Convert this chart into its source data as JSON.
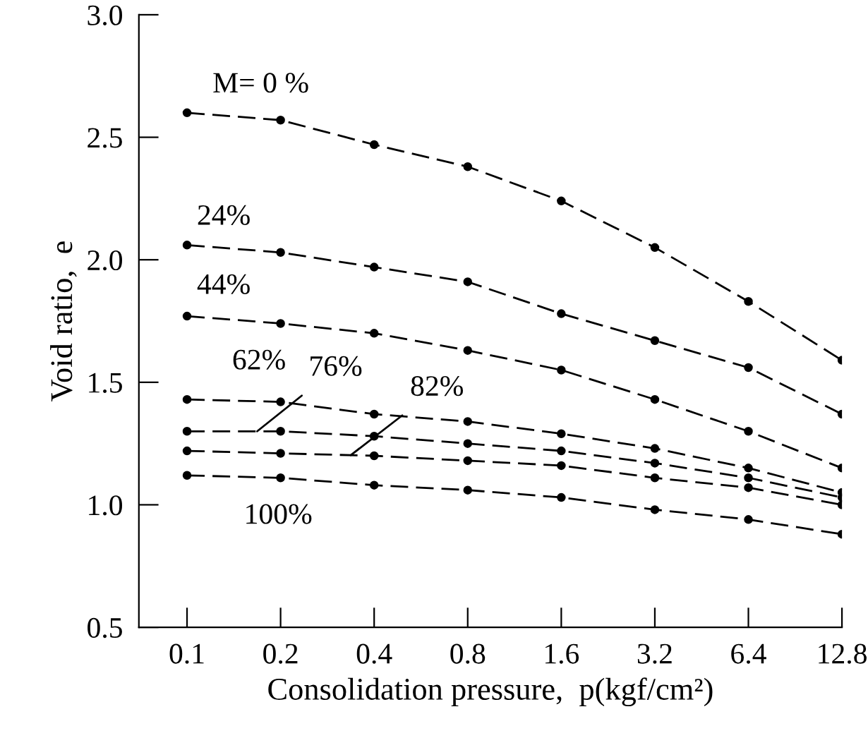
{
  "chart_data": {
    "type": "line",
    "xlabel": "Consolidation pressure,  p(kgf/cm²)",
    "ylabel": "Void ratio,  e",
    "x": [
      0.1,
      0.2,
      0.4,
      0.8,
      1.6,
      3.2,
      6.4,
      12.8
    ],
    "series": [
      {
        "name": "M= 0 %",
        "color": "#000000",
        "values": [
          2.6,
          2.57,
          2.47,
          2.38,
          2.24,
          2.05,
          1.83,
          1.59
        ]
      },
      {
        "name": "24%",
        "color": "#000000",
        "values": [
          2.06,
          2.03,
          1.97,
          1.91,
          1.78,
          1.67,
          1.56,
          1.37
        ]
      },
      {
        "name": "44%",
        "color": "#000000",
        "values": [
          1.77,
          1.74,
          1.7,
          1.63,
          1.55,
          1.43,
          1.3,
          1.15
        ]
      },
      {
        "name": "62%",
        "color": "#000000",
        "values": [
          1.43,
          1.42,
          1.37,
          1.34,
          1.29,
          1.23,
          1.15,
          1.05
        ]
      },
      {
        "name": "76%",
        "color": "#000000",
        "values": [
          1.3,
          1.3,
          1.28,
          1.25,
          1.22,
          1.17,
          1.11,
          1.03
        ]
      },
      {
        "name": "82%",
        "color": "#000000",
        "values": [
          1.22,
          1.21,
          1.2,
          1.18,
          1.16,
          1.11,
          1.07,
          1.0
        ]
      },
      {
        "name": "100%",
        "color": "#000000",
        "values": [
          1.12,
          1.11,
          1.08,
          1.06,
          1.03,
          0.98,
          0.94,
          0.88
        ]
      }
    ],
    "log": "x",
    "xlim": [
      0.07,
      12.8
    ],
    "ylim": [
      0.5,
      3.0
    ],
    "xticks": [
      0.1,
      0.2,
      0.4,
      0.8,
      1.6,
      3.2,
      6.4,
      12.8
    ],
    "yticks": [
      {
        "value": 0.5,
        "label": "0.5"
      },
      {
        "value": 1.0,
        "label": "1.0"
      },
      {
        "value": 1.5,
        "label": "1.5"
      },
      {
        "value": 2.0,
        "label": "2.0"
      },
      {
        "value": 2.5,
        "label": "2.5"
      },
      {
        "value": 3.0,
        "label": "3.0"
      }
    ],
    "grid": false,
    "legend": false,
    "marker": "circle",
    "line_style": "dashed"
  }
}
